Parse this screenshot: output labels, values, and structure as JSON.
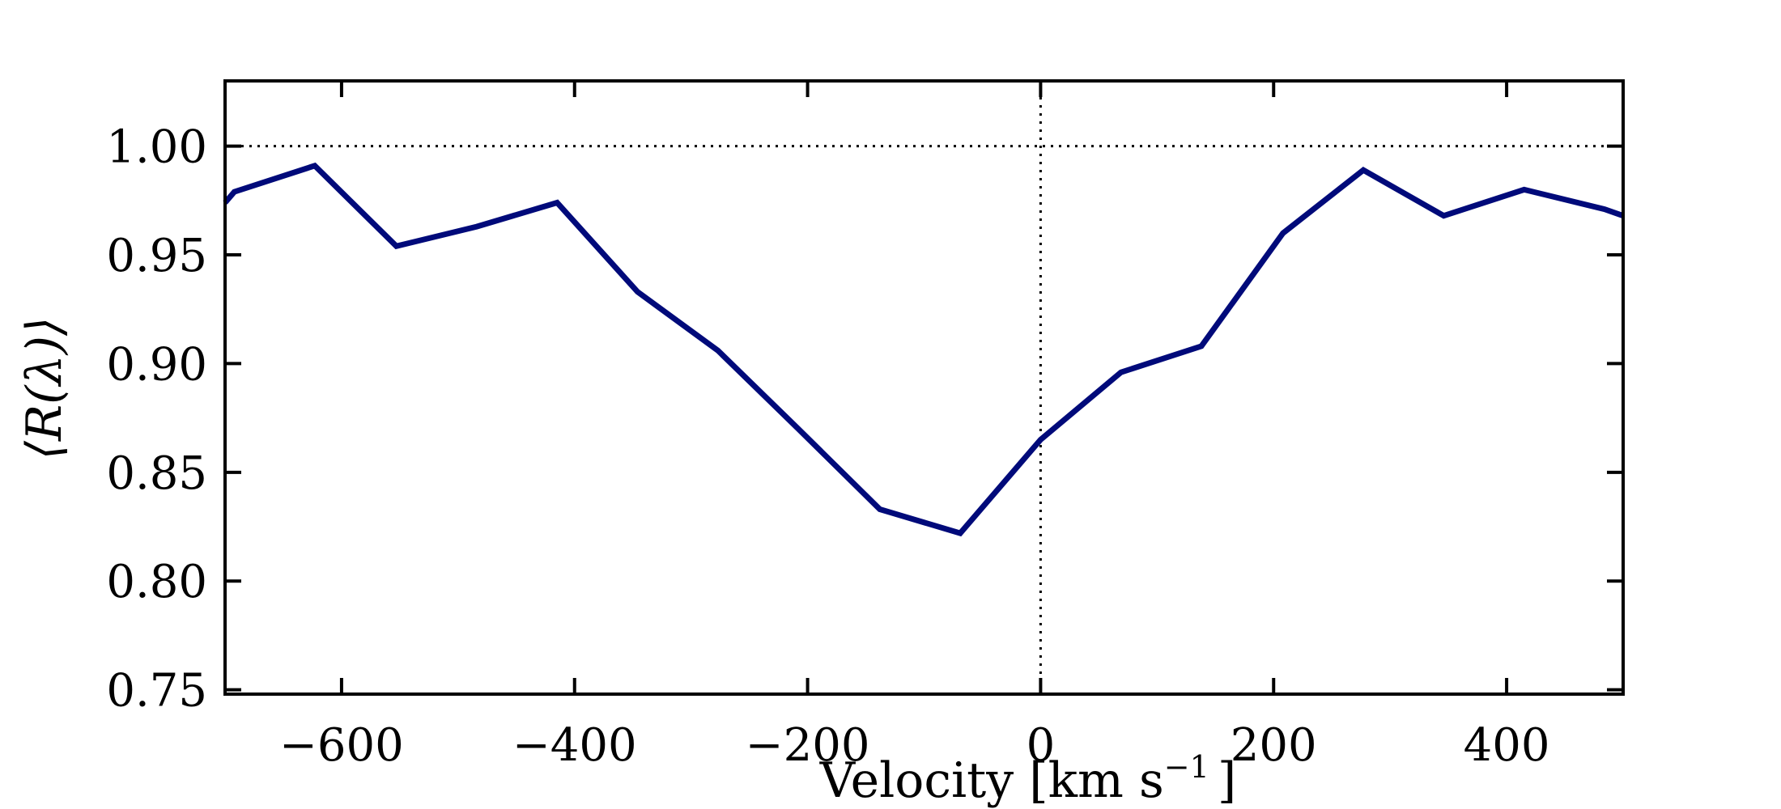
{
  "chart_data": {
    "type": "line",
    "title": "",
    "xlabel": "Velocity [km s",
    "xlabel_sup": "−1",
    "xlabel_tail": "]",
    "ylabel": "⟨R(λ)⟩",
    "xlim": [
      -700,
      500
    ],
    "ylim": [
      0.748,
      1.03
    ],
    "grid": false,
    "reference_lines": {
      "horizontal_y": 1.0,
      "vertical_x": 0,
      "style": "dotted"
    },
    "x_ticks": [
      -600,
      -400,
      -200,
      0,
      200,
      400
    ],
    "x_tick_labels": [
      "−600",
      "−400",
      "−200",
      "0",
      "200",
      "400"
    ],
    "y_ticks": [
      0.75,
      0.8,
      0.85,
      0.9,
      0.95,
      1.0
    ],
    "y_tick_labels": [
      "0.75",
      "0.80",
      "0.85",
      "0.90",
      "0.95",
      "1.00"
    ],
    "series": [
      {
        "color": "#000a7a",
        "x": [
          -700,
          -692,
          -623,
          -553,
          -484,
          -415,
          -346,
          -277,
          -208,
          -138,
          -69,
          0,
          69,
          138,
          208,
          277,
          346,
          415,
          484,
          500
        ],
        "y": [
          0.974,
          0.979,
          0.991,
          0.954,
          0.963,
          0.974,
          0.933,
          0.906,
          0.87,
          0.833,
          0.822,
          0.865,
          0.896,
          0.908,
          0.96,
          0.989,
          0.968,
          0.98,
          0.971,
          0.968
        ]
      }
    ]
  }
}
